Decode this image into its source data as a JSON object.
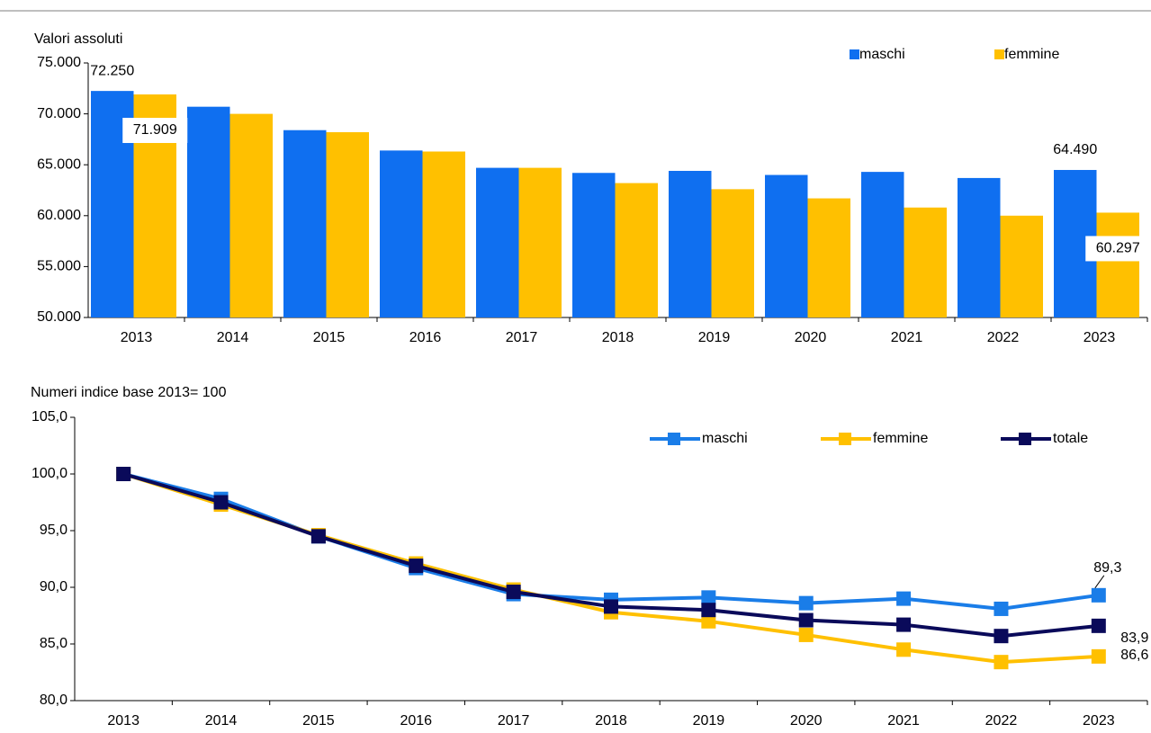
{
  "chart_data": [
    {
      "type": "bar",
      "title": "Valori assoluti",
      "categories": [
        "2013",
        "2014",
        "2015",
        "2016",
        "2017",
        "2018",
        "2019",
        "2020",
        "2021",
        "2022",
        "2023"
      ],
      "series": [
        {
          "name": "maschi",
          "color": "#0f6ff0",
          "values": [
            72250,
            70700,
            68400,
            66400,
            64700,
            64200,
            64400,
            64000,
            64300,
            63700,
            64490
          ],
          "value_labels": [
            "72.250",
            null,
            null,
            null,
            null,
            null,
            null,
            null,
            null,
            null,
            "64.490"
          ]
        },
        {
          "name": "femmine",
          "color": "#ffc000",
          "values": [
            71909,
            70000,
            68200,
            66300,
            64700,
            63200,
            62600,
            61700,
            60800,
            60000,
            60297
          ],
          "value_labels": [
            "71.909",
            null,
            null,
            null,
            null,
            null,
            null,
            null,
            null,
            null,
            "60.297"
          ]
        }
      ],
      "ylim": [
        50000,
        75000
      ],
      "yticks": [
        {
          "value": 50000,
          "label": "50.000"
        },
        {
          "value": 55000,
          "label": "55.000"
        },
        {
          "value": 60000,
          "label": "60.000"
        },
        {
          "value": 65000,
          "label": "65.000"
        },
        {
          "value": 70000,
          "label": "70.000"
        },
        {
          "value": 75000,
          "label": "75.000"
        }
      ]
    },
    {
      "type": "line",
      "title": "Numeri indice base 2013= 100",
      "categories": [
        "2013",
        "2014",
        "2015",
        "2016",
        "2017",
        "2018",
        "2019",
        "2020",
        "2021",
        "2022",
        "2023"
      ],
      "series": [
        {
          "name": "maschi",
          "color": "#1a7de8",
          "values": [
            100,
            97.8,
            94.5,
            91.7,
            89.4,
            88.9,
            89.1,
            88.6,
            89.0,
            88.1,
            89.3
          ],
          "value_labels": [
            null,
            null,
            null,
            null,
            null,
            null,
            null,
            null,
            null,
            null,
            "89,3"
          ]
        },
        {
          "name": "femmine",
          "color": "#ffc000",
          "values": [
            100,
            97.3,
            94.6,
            92.1,
            89.8,
            87.8,
            87.0,
            85.8,
            84.5,
            83.4,
            83.9
          ],
          "value_labels": [
            null,
            null,
            null,
            null,
            null,
            null,
            null,
            null,
            null,
            null,
            "83,9"
          ]
        },
        {
          "name": "totale",
          "color": "#0a0a5a",
          "values": [
            100,
            97.5,
            94.5,
            91.9,
            89.6,
            88.3,
            88.0,
            87.1,
            86.7,
            85.7,
            86.6
          ],
          "value_labels": [
            null,
            null,
            null,
            null,
            null,
            null,
            null,
            null,
            null,
            null,
            "86,6"
          ]
        }
      ],
      "ylim": [
        80,
        105
      ],
      "yticks": [
        {
          "value": 80,
          "label": "80,0"
        },
        {
          "value": 85,
          "label": "85,0"
        },
        {
          "value": 90,
          "label": "90,0"
        },
        {
          "value": 95,
          "label": "95,0"
        },
        {
          "value": 100,
          "label": "100,0"
        },
        {
          "value": 105,
          "label": "105,0"
        }
      ]
    }
  ]
}
